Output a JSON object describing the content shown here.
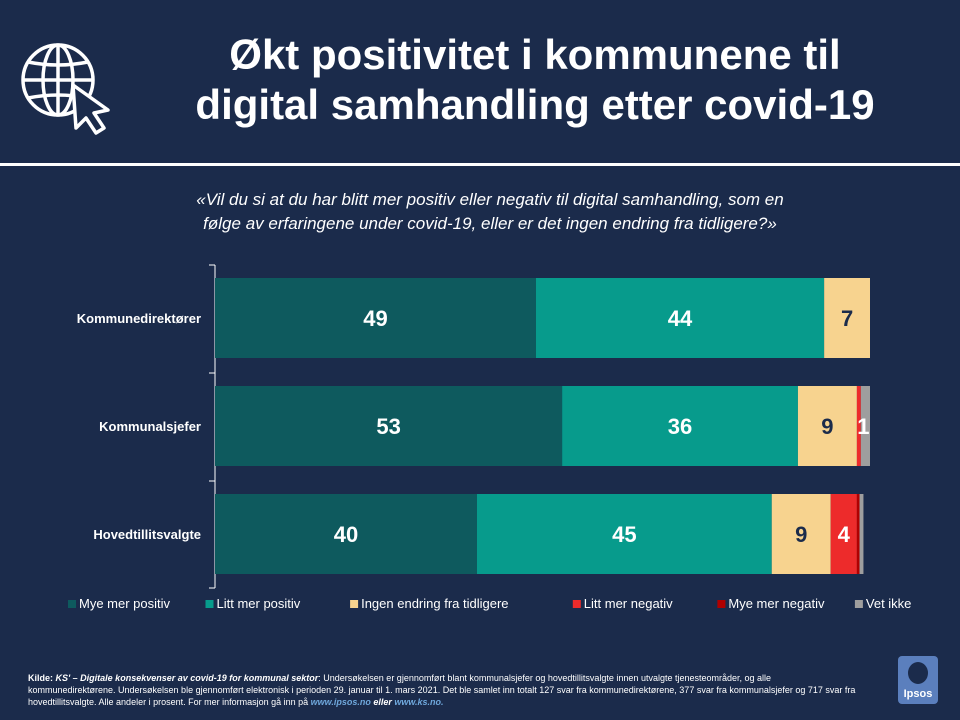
{
  "header": {
    "title_line1": "Økt positivitet i kommunene til",
    "title_line2": "digital samhandling etter covid-19"
  },
  "question": {
    "line1": "«Vil du si at du har blitt mer positiv eller negativ til digital samhandling, som en",
    "line2": "følge av erfaringene under covid-19, eller er det ingen endring fra tidligere?»"
  },
  "chart_data": {
    "type": "bar",
    "orientation": "horizontal",
    "stacked": true,
    "categories": [
      "Kommunedirektører",
      "Kommunalsjefer",
      "Hovedtillitsvalgte"
    ],
    "series": [
      {
        "name": "Mye mer positiv",
        "color": "#0e5a5e",
        "values": [
          49,
          53,
          40
        ],
        "labels": [
          "49",
          "53",
          "40"
        ]
      },
      {
        "name": "Litt mer positiv",
        "color": "#079b8c",
        "values": [
          44,
          36,
          45
        ],
        "labels": [
          "44",
          "36",
          "45"
        ]
      },
      {
        "name": "Ingen endring fra tidligere",
        "color": "#f7d38f",
        "values": [
          7,
          9,
          9
        ],
        "labels": [
          "7",
          "9",
          "9"
        ]
      },
      {
        "name": "Litt mer negativ",
        "color": "#ed2b2b",
        "values": [
          0,
          0.6,
          4
        ],
        "labels": [
          "",
          "",
          "4"
        ]
      },
      {
        "name": "Mye mer negativ",
        "color": "#b00000",
        "values": [
          0,
          0,
          0.4
        ],
        "labels": [
          "",
          "",
          ""
        ]
      },
      {
        "name": "Vet ikke",
        "color": "#9e9e9e",
        "values": [
          0,
          1.4,
          0.6
        ],
        "labels": [
          "",
          "1",
          ""
        ]
      }
    ],
    "xlim": [
      0,
      100
    ],
    "legend_position": "bottom",
    "grid": false
  },
  "source": {
    "kilde_label": "Kilde:",
    "title": "KS' – Digitale konsekvenser av covid-19 for kommunal sektor",
    "text": ": Undersøkelsen er gjennomført blant kommunalsjefer og hovedtillitsvalgte innen utvalgte tjenesteområder, og alle kommunedirektørene.  Undersøkelsen ble gjennomført elektronisk i perioden 29. januar til 1. mars 2021. Det ble samlet inn totalt 127 svar fra kommunedirektørene,  377 svar fra kommunalsjefer og 717 svar fra hovedtillitsvalgte. Alle andeler i prosent. For mer informasjon gå inn på ",
    "link1": "www.ipsos.no",
    "mid": " eller ",
    "link2": "www.ks.no."
  },
  "logo": {
    "text": "Ipsos"
  },
  "icons": {
    "header": "globe-cursor-icon"
  }
}
